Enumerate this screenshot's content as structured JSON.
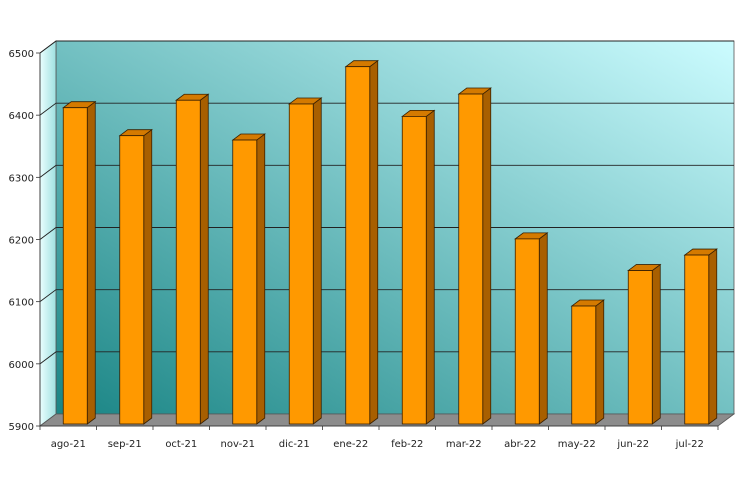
{
  "chart_data": {
    "type": "bar",
    "categories": [
      "ago-21",
      "sep-21",
      "oct-21",
      "nov-21",
      "dic-21",
      "ene-22",
      "feb-22",
      "mar-22",
      "abr-22",
      "may-22",
      "jun-22",
      "jul-22"
    ],
    "values": [
      6412,
      6367,
      6424,
      6360,
      6418,
      6478,
      6398,
      6434,
      6201,
      6093,
      6150,
      6175
    ],
    "ylim": [
      5900,
      6500
    ],
    "yticks": [
      5900,
      6000,
      6100,
      6200,
      6300,
      6400,
      6500
    ],
    "grid": true,
    "legend": "none",
    "colors": {
      "bar_front": "#ff9900",
      "bar_side": "#a85f00",
      "bar_top": "#d47a00",
      "gradient_dark": "#1a8585",
      "gradient_light": "#ccfcff",
      "side_wall": "#d9ffff",
      "floor": "#8c8c8c"
    }
  }
}
